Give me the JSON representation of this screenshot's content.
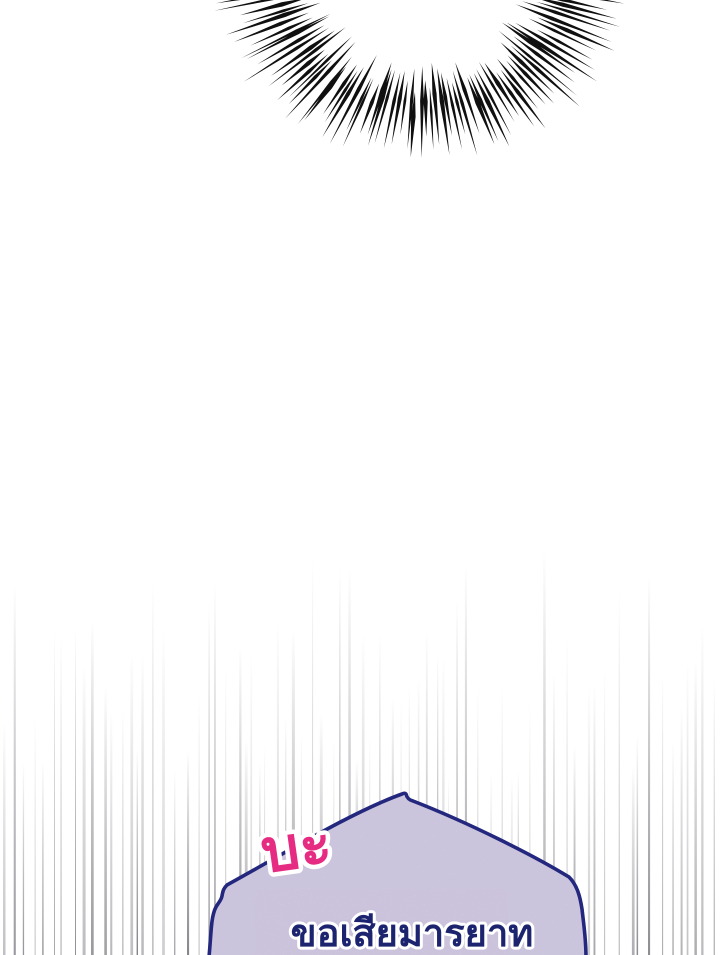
{
  "panel": {
    "kind": "webtoon-comic-panel",
    "background_color": "#ffffff",
    "burst": {
      "description": "radial black impact lines arcing across the top of the panel",
      "color": "#101010"
    },
    "speed_lines": {
      "description": "vertical gray motion lines rising from the bottom of the panel",
      "color": "#55555e"
    },
    "bubble": {
      "description": "lavender speckled speech bubble with navy outline, cut off by panel bottom",
      "fill": "#ded9ec",
      "speckle_tint": "#6b5c8c",
      "border": "#23277d"
    },
    "sfx": {
      "text": "บะ",
      "color": "#e52c82",
      "outline": "#ffffff"
    },
    "speech": {
      "text": "ขอเสียมารยาท",
      "color": "#1d246f",
      "outline": "#ffffff"
    }
  }
}
